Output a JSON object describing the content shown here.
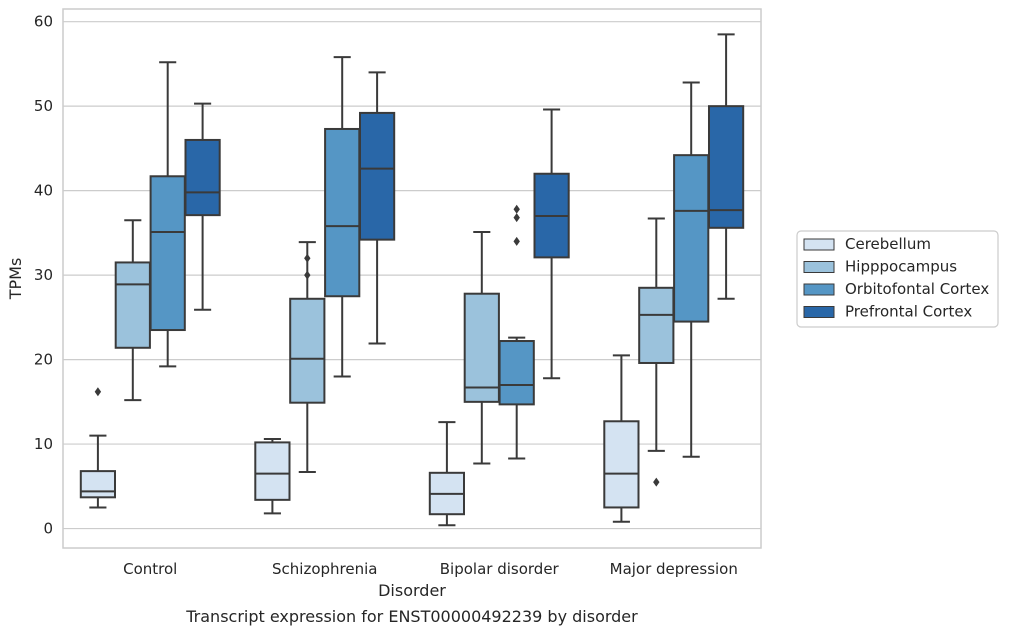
{
  "chart_data": {
    "type": "box",
    "xlabel": "Disorder",
    "ylabel": "TPMs",
    "caption": "Transcript expression for ENST00000492239 by disorder",
    "ylim": [
      -2.3,
      61.5
    ],
    "yticks": [
      0,
      10,
      20,
      30,
      40,
      50,
      60
    ],
    "grid": "horizontal",
    "legend_position": "right",
    "categories": [
      "Control",
      "Schizophrenia",
      "Bipolar disorder",
      "Major depression"
    ],
    "series": [
      {
        "name": "Cerebellum",
        "color": "#d4e3f2",
        "boxes": [
          {
            "whislo": 2.5,
            "q1": 3.7,
            "med": 4.4,
            "q3": 6.8,
            "whishi": 11.0,
            "fliers": [
              16.2
            ]
          },
          {
            "whislo": 1.8,
            "q1": 3.4,
            "med": 6.5,
            "q3": 10.2,
            "whishi": 10.6,
            "fliers": []
          },
          {
            "whislo": 0.4,
            "q1": 1.7,
            "med": 4.1,
            "q3": 6.6,
            "whishi": 12.6,
            "fliers": []
          },
          {
            "whislo": 0.8,
            "q1": 2.5,
            "med": 6.5,
            "q3": 12.7,
            "whishi": 20.5,
            "fliers": []
          }
        ]
      },
      {
        "name": "Hipppocampus",
        "color": "#9bc2dc",
        "boxes": [
          {
            "whislo": 15.2,
            "q1": 21.4,
            "med": 28.9,
            "q3": 31.5,
            "whishi": 36.5,
            "fliers": []
          },
          {
            "whislo": 6.7,
            "q1": 14.9,
            "med": 20.1,
            "q3": 27.2,
            "whishi": 33.9,
            "fliers": [
              30.0,
              32.0
            ]
          },
          {
            "whislo": 7.7,
            "q1": 15.0,
            "med": 16.7,
            "q3": 27.8,
            "whishi": 35.1,
            "fliers": []
          },
          {
            "whislo": 9.2,
            "q1": 19.6,
            "med": 25.3,
            "q3": 28.5,
            "whishi": 36.7,
            "fliers": [
              5.5
            ]
          }
        ]
      },
      {
        "name": "Orbitofontal Cortex",
        "color": "#5596c5",
        "boxes": [
          {
            "whislo": 19.2,
            "q1": 23.5,
            "med": 35.1,
            "q3": 41.7,
            "whishi": 55.2,
            "fliers": []
          },
          {
            "whislo": 18.0,
            "q1": 27.5,
            "med": 35.8,
            "q3": 47.3,
            "whishi": 55.8,
            "fliers": []
          },
          {
            "whislo": 8.3,
            "q1": 14.7,
            "med": 17.0,
            "q3": 22.2,
            "whishi": 22.6,
            "fliers": [
              34.0,
              36.8,
              37.8
            ]
          },
          {
            "whislo": 8.5,
            "q1": 24.5,
            "med": 37.6,
            "q3": 44.2,
            "whishi": 52.8,
            "fliers": []
          }
        ]
      },
      {
        "name": "Prefrontal Cortex",
        "color": "#2967a8",
        "boxes": [
          {
            "whislo": 25.9,
            "q1": 37.1,
            "med": 39.8,
            "q3": 46.0,
            "whishi": 50.3,
            "fliers": []
          },
          {
            "whislo": 21.9,
            "q1": 34.2,
            "med": 42.6,
            "q3": 49.2,
            "whishi": 54.0,
            "fliers": []
          },
          {
            "whislo": 17.8,
            "q1": 32.1,
            "med": 37.0,
            "q3": 42.0,
            "whishi": 49.6,
            "fliers": []
          },
          {
            "whislo": 27.2,
            "q1": 35.6,
            "med": 37.7,
            "q3": 50.0,
            "whishi": 58.5,
            "fliers": []
          }
        ]
      }
    ]
  }
}
